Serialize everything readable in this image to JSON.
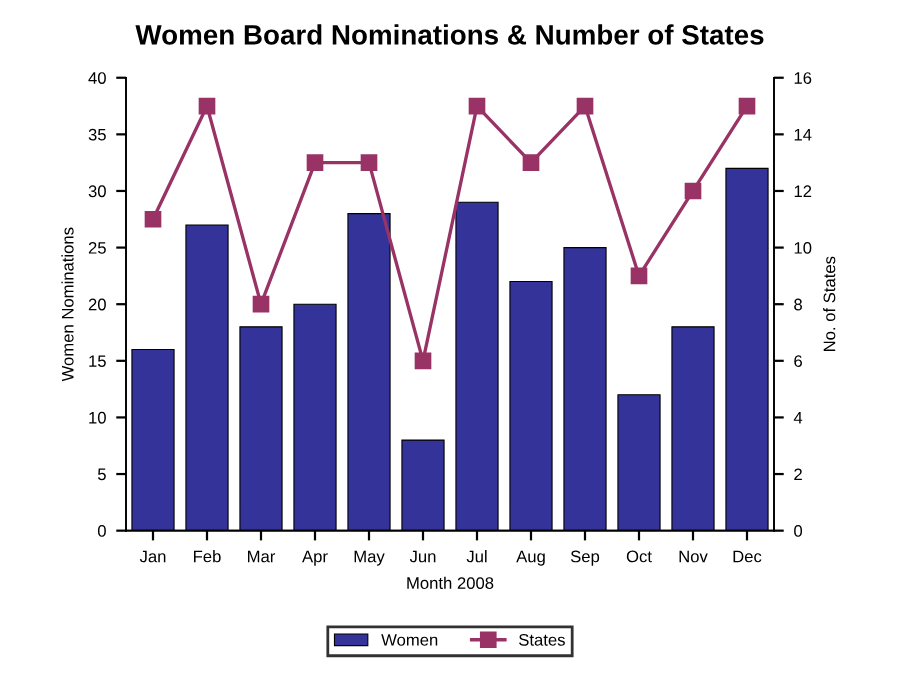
{
  "chart_data": {
    "type": "bar",
    "title": "Women Board Nominations & Number of States",
    "xlabel": "Month 2008",
    "ylabel": "Women Nominations",
    "y2label": "No. of States",
    "categories": [
      "Jan",
      "Feb",
      "Mar",
      "Apr",
      "May",
      "Jun",
      "Jul",
      "Aug",
      "Sep",
      "Oct",
      "Nov",
      "Dec"
    ],
    "series": [
      {
        "name": "Women",
        "color": "#333399",
        "values": [
          16,
          27,
          18,
          20,
          28,
          8,
          29,
          22,
          25,
          12,
          18,
          32
        ]
      },
      {
        "name": "States",
        "type": "line",
        "axis": "y2",
        "color": "#993366",
        "marker": "square",
        "values": [
          11,
          15,
          8,
          13,
          13,
          6,
          15,
          13,
          15,
          9,
          12,
          15
        ]
      }
    ],
    "ylim": [
      0,
      40
    ],
    "yticks": [
      0,
      5,
      10,
      15,
      20,
      25,
      30,
      35,
      40
    ],
    "y2lim": [
      0,
      16
    ],
    "y2ticks": [
      0,
      2,
      4,
      6,
      8,
      10,
      12,
      14,
      16
    ],
    "grid": false,
    "legend": "bottom"
  }
}
